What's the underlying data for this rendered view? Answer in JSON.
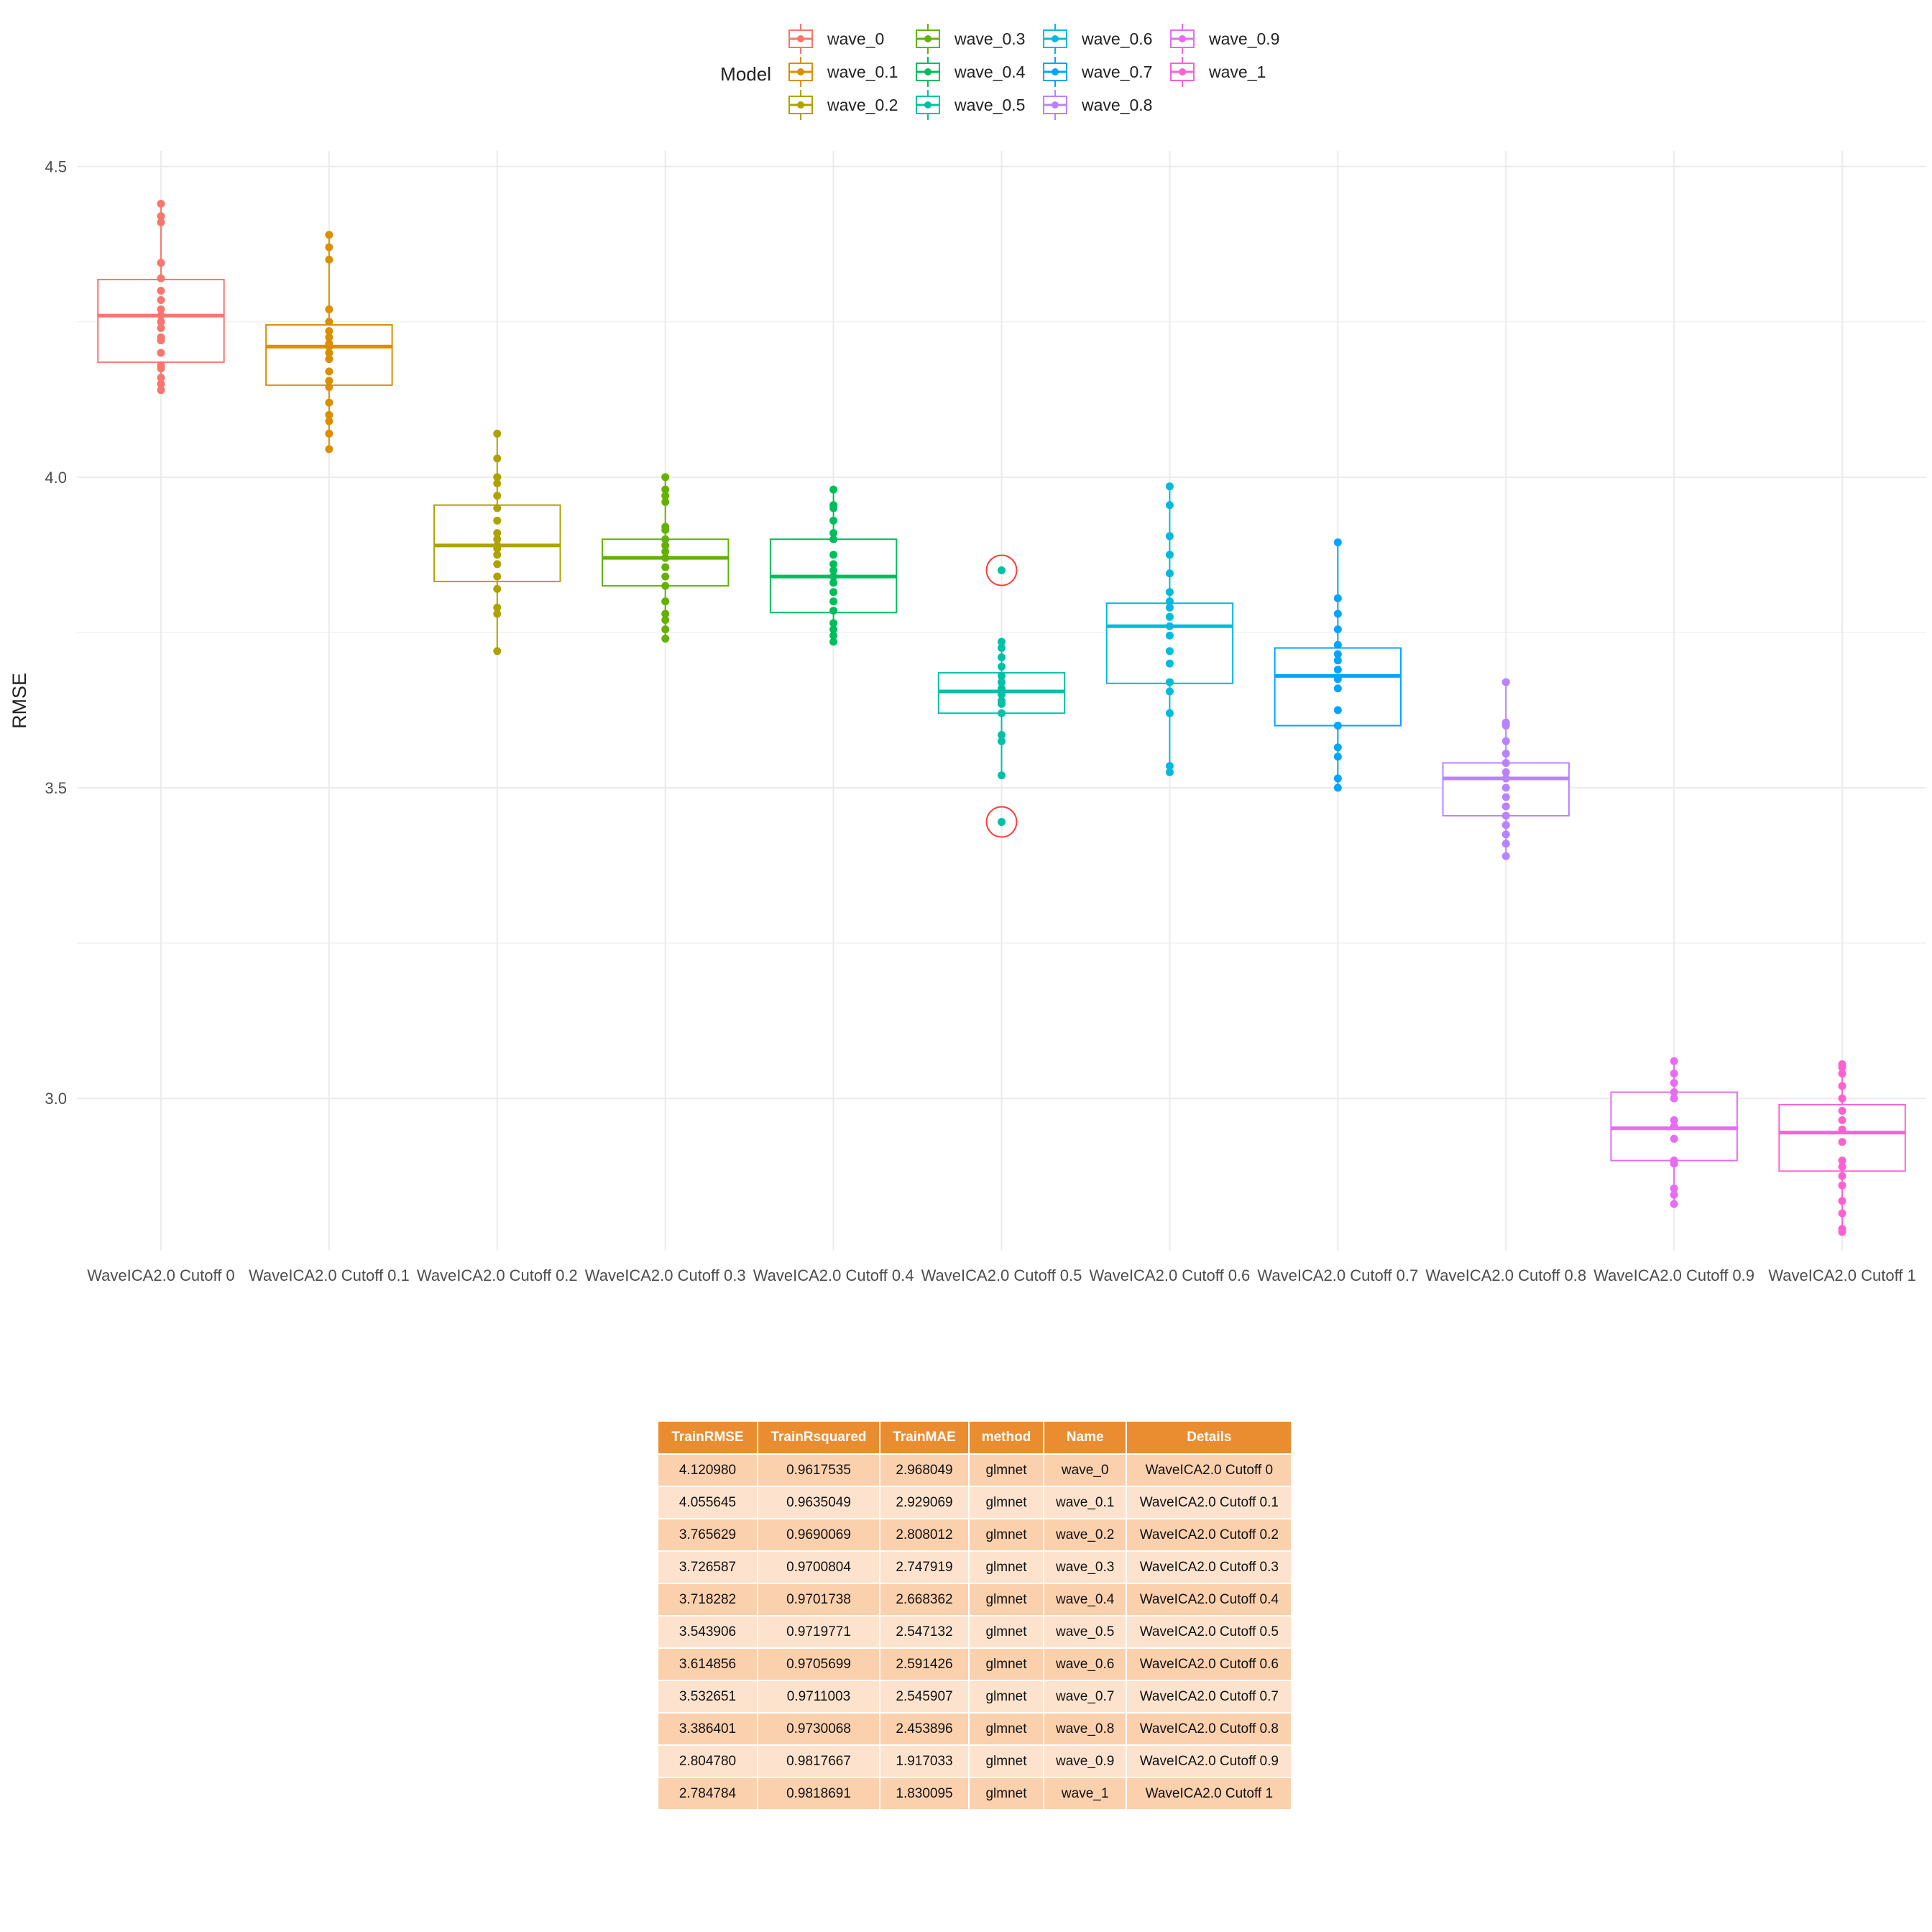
{
  "chart_data": {
    "type": "box",
    "ylabel": "RMSE",
    "xlabel": "",
    "ylim": [
      2.755,
      4.525
    ],
    "yticks": [
      3.0,
      3.5,
      4.0,
      4.5
    ],
    "ytick_labels": [
      "3.0",
      "3.5",
      "4.0",
      "4.5"
    ],
    "grid": true,
    "legend": {
      "title": "Model",
      "position": "top",
      "columns": [
        [
          "wave_0",
          "wave_0.1",
          "wave_0.2"
        ],
        [
          "wave_0.3",
          "wave_0.4",
          "wave_0.5"
        ],
        [
          "wave_0.6",
          "wave_0.7",
          "wave_0.8"
        ],
        [
          "wave_0.9",
          "wave_1"
        ]
      ]
    },
    "categories": [
      "WaveICA2.0 Cutoff 0",
      "WaveICA2.0 Cutoff 0.1",
      "WaveICA2.0 Cutoff 0.2",
      "WaveICA2.0 Cutoff 0.3",
      "WaveICA2.0 Cutoff 0.4",
      "WaveICA2.0 Cutoff 0.5",
      "WaveICA2.0 Cutoff 0.6",
      "WaveICA2.0 Cutoff 0.7",
      "WaveICA2.0 Cutoff 0.8",
      "WaveICA2.0 Cutoff 0.9",
      "WaveICA2.0 Cutoff 1"
    ],
    "series": [
      {
        "name": "wave_0",
        "color": "#f8766d",
        "q1": 4.185,
        "median": 4.26,
        "q3": 4.318,
        "whisker_low": 4.14,
        "whisker_high": 4.44,
        "points": [
          4.14,
          4.15,
          4.16,
          4.175,
          4.18,
          4.2,
          4.22,
          4.225,
          4.24,
          4.25,
          4.26,
          4.27,
          4.285,
          4.3,
          4.32,
          4.345,
          4.41,
          4.42,
          4.44
        ]
      },
      {
        "name": "wave_0.1",
        "color": "#db8e00",
        "q1": 4.148,
        "median": 4.21,
        "q3": 4.245,
        "whisker_low": 4.045,
        "whisker_high": 4.39,
        "points": [
          4.045,
          4.07,
          4.09,
          4.1,
          4.12,
          4.145,
          4.155,
          4.17,
          4.19,
          4.2,
          4.21,
          4.215,
          4.225,
          4.235,
          4.25,
          4.27,
          4.35,
          4.37,
          4.39
        ]
      },
      {
        "name": "wave_0.2",
        "color": "#aea200",
        "q1": 3.832,
        "median": 3.89,
        "q3": 3.955,
        "whisker_low": 3.72,
        "whisker_high": 4.07,
        "points": [
          3.72,
          3.78,
          3.79,
          3.82,
          3.84,
          3.86,
          3.875,
          3.885,
          3.89,
          3.9,
          3.91,
          3.93,
          3.95,
          3.97,
          3.99,
          4.0,
          4.03,
          4.07
        ]
      },
      {
        "name": "wave_0.3",
        "color": "#64b200",
        "q1": 3.825,
        "median": 3.87,
        "q3": 3.9,
        "whisker_low": 3.74,
        "whisker_high": 4.0,
        "points": [
          3.74,
          3.755,
          3.77,
          3.78,
          3.8,
          3.825,
          3.84,
          3.855,
          3.87,
          3.88,
          3.89,
          3.9,
          3.915,
          3.92,
          3.96,
          3.97,
          3.98,
          4.0
        ]
      },
      {
        "name": "wave_0.4",
        "color": "#00bd5c",
        "q1": 3.782,
        "median": 3.84,
        "q3": 3.9,
        "whisker_low": 3.735,
        "whisker_high": 3.98,
        "points": [
          3.735,
          3.745,
          3.755,
          3.765,
          3.785,
          3.8,
          3.815,
          3.83,
          3.84,
          3.85,
          3.86,
          3.875,
          3.9,
          3.91,
          3.93,
          3.95,
          3.955,
          3.98
        ]
      },
      {
        "name": "wave_0.5",
        "color": "#00c1a7",
        "q1": 3.62,
        "median": 3.655,
        "q3": 3.685,
        "whisker_low": 3.52,
        "whisker_high": 3.735,
        "points": [
          3.52,
          3.575,
          3.585,
          3.62,
          3.635,
          3.64,
          3.65,
          3.66,
          3.67,
          3.68,
          3.695,
          3.71,
          3.725,
          3.735
        ],
        "outliers": [
          3.85,
          3.445
        ]
      },
      {
        "name": "wave_0.6",
        "color": "#00badf",
        "q1": 3.668,
        "median": 3.76,
        "q3": 3.797,
        "whisker_low": 3.525,
        "whisker_high": 3.985,
        "points": [
          3.525,
          3.535,
          3.62,
          3.655,
          3.67,
          3.7,
          3.72,
          3.745,
          3.76,
          3.775,
          3.79,
          3.8,
          3.815,
          3.845,
          3.875,
          3.905,
          3.955,
          3.985
        ]
      },
      {
        "name": "wave_0.7",
        "color": "#00a5ff",
        "q1": 3.6,
        "median": 3.68,
        "q3": 3.725,
        "whisker_low": 3.5,
        "whisker_high": 3.895,
        "points": [
          3.5,
          3.515,
          3.55,
          3.565,
          3.6,
          3.625,
          3.66,
          3.675,
          3.69,
          3.705,
          3.715,
          3.73,
          3.755,
          3.78,
          3.805,
          3.895
        ]
      },
      {
        "name": "wave_0.8",
        "color": "#b983ff",
        "q1": 3.455,
        "median": 3.515,
        "q3": 3.54,
        "whisker_low": 3.39,
        "whisker_high": 3.67,
        "points": [
          3.39,
          3.41,
          3.425,
          3.44,
          3.455,
          3.47,
          3.485,
          3.5,
          3.515,
          3.525,
          3.54,
          3.555,
          3.575,
          3.6,
          3.605,
          3.67
        ]
      },
      {
        "name": "wave_0.9",
        "color": "#e76bf3",
        "q1": 2.9,
        "median": 2.952,
        "q3": 3.01,
        "whisker_low": 2.83,
        "whisker_high": 3.06,
        "points": [
          2.83,
          2.845,
          2.855,
          2.895,
          2.9,
          2.935,
          2.955,
          2.965,
          3.0,
          3.01,
          3.025,
          3.04,
          3.06
        ]
      },
      {
        "name": "wave_1",
        "color": "#fd61d1",
        "q1": 2.883,
        "median": 2.945,
        "q3": 2.99,
        "whisker_low": 2.785,
        "whisker_high": 3.055,
        "points": [
          2.785,
          2.79,
          2.815,
          2.835,
          2.86,
          2.875,
          2.89,
          2.9,
          2.93,
          2.95,
          2.965,
          2.98,
          3.0,
          3.02,
          3.04,
          3.05,
          3.055
        ]
      }
    ]
  },
  "table": {
    "headers": [
      "TrainRMSE",
      "TrainRsquared",
      "TrainMAE",
      "method",
      "Name",
      "Details"
    ],
    "rows": [
      [
        "4.120980",
        "0.9617535",
        "2.968049",
        "glmnet",
        "wave_0",
        "WaveICA2.0 Cutoff 0"
      ],
      [
        "4.055645",
        "0.9635049",
        "2.929069",
        "glmnet",
        "wave_0.1",
        "WaveICA2.0 Cutoff 0.1"
      ],
      [
        "3.765629",
        "0.9690069",
        "2.808012",
        "glmnet",
        "wave_0.2",
        "WaveICA2.0 Cutoff 0.2"
      ],
      [
        "3.726587",
        "0.9700804",
        "2.747919",
        "glmnet",
        "wave_0.3",
        "WaveICA2.0 Cutoff 0.3"
      ],
      [
        "3.718282",
        "0.9701738",
        "2.668362",
        "glmnet",
        "wave_0.4",
        "WaveICA2.0 Cutoff 0.4"
      ],
      [
        "3.543906",
        "0.9719771",
        "2.547132",
        "glmnet",
        "wave_0.5",
        "WaveICA2.0 Cutoff 0.5"
      ],
      [
        "3.614856",
        "0.9705699",
        "2.591426",
        "glmnet",
        "wave_0.6",
        "WaveICA2.0 Cutoff 0.6"
      ],
      [
        "3.532651",
        "0.9711003",
        "2.545907",
        "glmnet",
        "wave_0.7",
        "WaveICA2.0 Cutoff 0.7"
      ],
      [
        "3.386401",
        "0.9730068",
        "2.453896",
        "glmnet",
        "wave_0.8",
        "WaveICA2.0 Cutoff 0.8"
      ],
      [
        "2.804780",
        "0.9817667",
        "1.917033",
        "glmnet",
        "wave_0.9",
        "WaveICA2.0 Cutoff 0.9"
      ],
      [
        "2.784784",
        "0.9818691",
        "1.830095",
        "glmnet",
        "wave_1",
        "WaveICA2.0 Cutoff 1"
      ]
    ]
  },
  "style": {
    "grid_color": "#ebebeb",
    "highlight_ring_color": "#ff3b3b",
    "table_header_color": "#ea8d30",
    "table_row_odd": "#fbd0ad",
    "table_row_even": "#fde3cd"
  }
}
